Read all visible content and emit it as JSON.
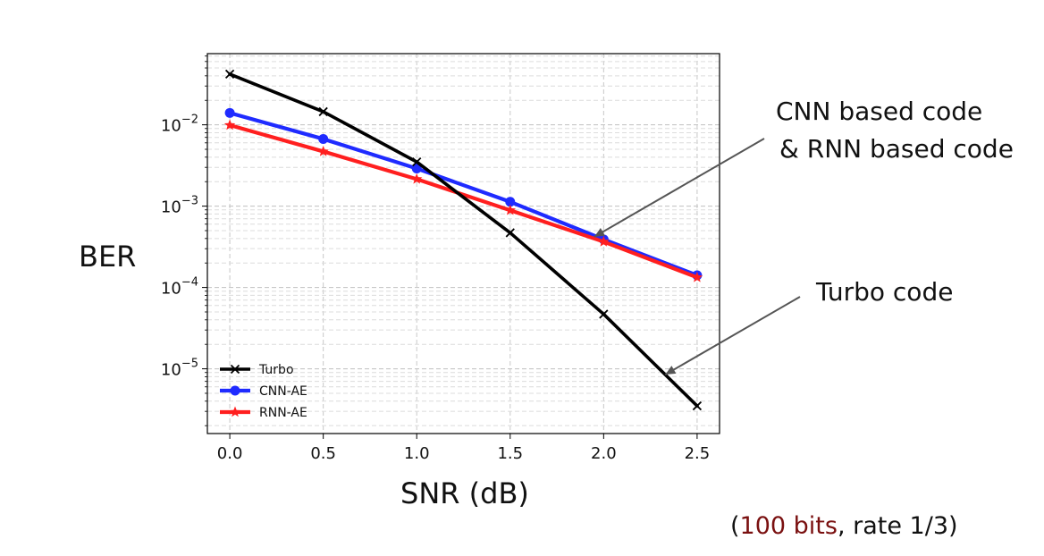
{
  "chart_data": {
    "type": "line",
    "xlabel": "SNR (dB)",
    "ylabel": "BER",
    "yscale": "log",
    "xlim": [
      -0.12,
      2.62
    ],
    "ylim": [
      1.6e-06,
      0.075
    ],
    "x_ticks": [
      0.0,
      0.5,
      1.0,
      1.5,
      2.0,
      2.5
    ],
    "x_tick_labels": [
      "0.0",
      "0.5",
      "1.0",
      "1.5",
      "2.0",
      "2.5"
    ],
    "y_ticks": [
      0.01,
      0.001,
      0.0001,
      1e-05
    ],
    "y_tick_labels": [
      {
        "base": "10",
        "exp": "−2"
      },
      {
        "base": "10",
        "exp": "−3"
      },
      {
        "base": "10",
        "exp": "−4"
      },
      {
        "base": "10",
        "exp": "−5"
      }
    ],
    "grid": true,
    "legend_position": "lower-left",
    "x": [
      0.0,
      0.5,
      1.0,
      1.5,
      2.0,
      2.5
    ],
    "series": [
      {
        "name": "Turbo",
        "color": "#000000",
        "marker": "x",
        "values": [
          0.042,
          0.0145,
          0.0035,
          0.00047,
          4.7e-05,
          3.5e-06
        ]
      },
      {
        "name": "CNN-AE",
        "color": "#1f2bff",
        "marker": "circle",
        "values": [
          0.014,
          0.0067,
          0.0029,
          0.00113,
          0.00039,
          0.000141
        ]
      },
      {
        "name": "RNN-AE",
        "color": "#ff1f1f",
        "marker": "star",
        "values": [
          0.0099,
          0.0047,
          0.00215,
          0.00089,
          0.000365,
          0.000133
        ]
      }
    ]
  },
  "annotations": {
    "cnn_line1": "CNN based code",
    "cnn_line2": "& RNN based code",
    "turbo": "Turbo code"
  },
  "footnote": {
    "open": "(",
    "bits": "100 bits",
    "rest": ", rate 1/3)"
  }
}
